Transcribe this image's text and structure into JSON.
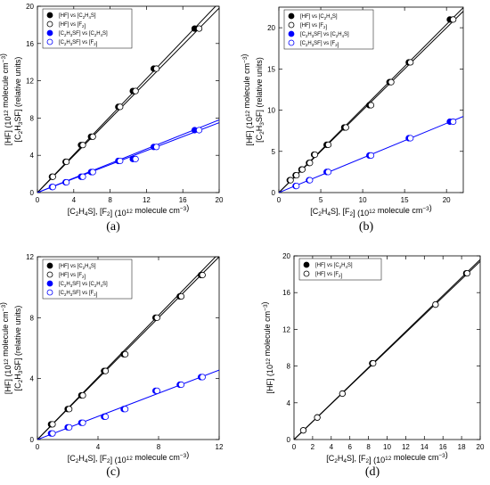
{
  "chart_data": [
    {
      "type": "scatter",
      "panel_label": "(a)",
      "xlabel": "[C2H4S], [F2] (1012 molecule cm−3)",
      "ylabel_lines": [
        "[HF] (1012 molecule cm−3)",
        "[C2H3SF] (relative units)"
      ],
      "xlim": [
        0,
        20
      ],
      "ylim": [
        0,
        20
      ],
      "xticks": [
        0,
        4,
        8,
        12,
        16,
        20
      ],
      "yticks": [
        0,
        4,
        8,
        12,
        16,
        20
      ],
      "legend_position": "top-left",
      "series": [
        {
          "name": "[HF] vs [C2H4S]",
          "color": "#000000",
          "marker": "filled",
          "x": [
            1.6,
            3.1,
            4.8,
            5.9,
            8.9,
            10.5,
            12.8,
            17.3
          ],
          "y": [
            1.7,
            3.3,
            5.1,
            6.0,
            9.2,
            10.9,
            13.3,
            17.6
          ]
        },
        {
          "name": "[HF] vs [F2]",
          "color": "#000000",
          "marker": "open",
          "x": [
            1.7,
            3.2,
            5.0,
            6.1,
            9.1,
            10.8,
            13.1,
            17.8
          ],
          "y": [
            1.7,
            3.3,
            5.1,
            6.0,
            9.2,
            10.9,
            13.3,
            17.6
          ]
        },
        {
          "name": "[C2H3SF] vs [C2H4S]",
          "color": "#0000ff",
          "marker": "filled",
          "x": [
            1.6,
            3.1,
            4.8,
            5.9,
            8.9,
            10.5,
            12.8,
            17.3
          ],
          "y": [
            0.6,
            1.1,
            1.7,
            2.2,
            3.4,
            3.6,
            4.9,
            6.7
          ]
        },
        {
          "name": "[C2H3SF] vs [F2]",
          "color": "#0000ff",
          "marker": "open",
          "x": [
            1.7,
            3.2,
            5.0,
            6.1,
            9.1,
            10.8,
            13.1,
            17.8
          ],
          "y": [
            0.6,
            1.1,
            1.7,
            2.2,
            3.4,
            3.6,
            4.9,
            6.7
          ]
        }
      ],
      "fit_lines": [
        {
          "color": "#000000",
          "slope": 1.02
        },
        {
          "color": "#000000",
          "slope": 0.99
        },
        {
          "color": "#0000ff",
          "slope": 0.39
        },
        {
          "color": "#0000ff",
          "slope": 0.375
        }
      ]
    },
    {
      "type": "scatter",
      "panel_label": "(b)",
      "xlabel": "[C2H4S], [F2] (1012 molecule cm−3)",
      "ylabel_lines": [
        "[HF] (1012 molecule cm−3)",
        "[C2H3SF] (relative units)"
      ],
      "xlim": [
        0,
        22
      ],
      "ylim": [
        0,
        22.5
      ],
      "xticks": [
        0,
        5,
        10,
        15,
        20
      ],
      "yticks": [
        0,
        5,
        10,
        15,
        20
      ],
      "legend_position": "top-left",
      "series": [
        {
          "name": "[HF] vs [C2H4S]",
          "color": "#000000",
          "marker": "filled",
          "x": [
            1.3,
            2.0,
            2.7,
            3.6,
            4.2,
            5.7,
            7.8,
            10.8,
            13.2,
            15.5,
            20.4
          ],
          "y": [
            1.5,
            2.1,
            2.8,
            3.6,
            4.6,
            5.8,
            7.9,
            10.6,
            13.4,
            15.8,
            21.0
          ]
        },
        {
          "name": "[HF] vs [F2]",
          "color": "#000000",
          "marker": "open",
          "x": [
            1.4,
            2.1,
            2.8,
            3.7,
            4.3,
            5.9,
            8.0,
            11.0,
            13.4,
            15.7,
            20.8
          ],
          "y": [
            1.5,
            2.1,
            2.8,
            3.6,
            4.6,
            5.8,
            7.9,
            10.6,
            13.4,
            15.8,
            21.0
          ]
        },
        {
          "name": "[C2H3SF] vs [C2H4S]",
          "color": "#0000ff",
          "marker": "filled",
          "x": [
            2.0,
            3.6,
            5.7,
            10.8,
            15.5,
            20.4
          ],
          "y": [
            0.8,
            1.5,
            2.5,
            4.5,
            6.6,
            8.6
          ]
        },
        {
          "name": "[C2H3SF] vs [F2]",
          "color": "#0000ff",
          "marker": "open",
          "x": [
            2.1,
            3.7,
            5.9,
            11.0,
            15.7,
            20.8
          ],
          "y": [
            0.8,
            1.5,
            2.5,
            4.5,
            6.6,
            8.6
          ]
        }
      ],
      "fit_lines": [
        {
          "color": "#000000",
          "slope": 1.02
        },
        {
          "color": "#000000",
          "slope": 1.0
        },
        {
          "color": "#0000ff",
          "slope": 0.42
        }
      ]
    },
    {
      "type": "scatter",
      "panel_label": "(c)",
      "xlabel": "[C2H4S], [F2] (1012 molecule cm−3)",
      "ylabel_lines": [
        "[HF] (1012 molecule cm−3)",
        "[C2H3SF] (relative units)"
      ],
      "xlim": [
        0,
        12
      ],
      "ylim": [
        0,
        12
      ],
      "xticks": [
        0,
        4,
        8,
        12
      ],
      "yticks": [
        0,
        4,
        8,
        12
      ],
      "legend_position": "top-left",
      "series": [
        {
          "name": "[HF] vs [C2H4S]",
          "color": "#000000",
          "marker": "filled",
          "x": [
            0.9,
            2.0,
            2.9,
            4.4,
            5.7,
            7.8,
            9.4,
            10.8
          ],
          "y": [
            1.0,
            2.0,
            2.9,
            4.5,
            5.6,
            8.0,
            9.4,
            10.8
          ]
        },
        {
          "name": "[HF] vs [F2]",
          "color": "#000000",
          "marker": "open",
          "x": [
            1.0,
            2.1,
            3.0,
            4.5,
            5.8,
            7.9,
            9.5,
            10.9
          ],
          "y": [
            1.0,
            2.0,
            2.9,
            4.5,
            5.6,
            8.0,
            9.4,
            10.8
          ]
        },
        {
          "name": "[C2H3SF] vs [C2H4S]",
          "color": "#0000ff",
          "marker": "filled",
          "x": [
            0.9,
            2.0,
            2.9,
            4.4,
            5.7,
            7.8,
            9.4,
            10.8
          ],
          "y": [
            0.4,
            0.8,
            1.1,
            1.5,
            2.0,
            3.2,
            3.6,
            4.1
          ]
        },
        {
          "name": "[C2H3SF] vs [F2]",
          "color": "#0000ff",
          "marker": "open",
          "x": [
            1.0,
            2.1,
            3.0,
            4.5,
            5.8,
            7.9,
            9.5,
            10.9
          ],
          "y": [
            0.4,
            0.8,
            1.1,
            1.5,
            2.0,
            3.2,
            3.6,
            4.1
          ]
        }
      ],
      "fit_lines": [
        {
          "color": "#000000",
          "slope": 1.02
        },
        {
          "color": "#000000",
          "slope": 1.0
        },
        {
          "color": "#0000ff",
          "slope": 0.38
        }
      ]
    },
    {
      "type": "scatter",
      "panel_label": "(d)",
      "xlabel": "[C2H4S], [F2] (1012 molecule cm−3)",
      "ylabel_lines": [
        "[HF] (1012 molecule cm−3)"
      ],
      "xlim": [
        0,
        20
      ],
      "ylim": [
        0,
        20
      ],
      "xticks": [
        0,
        2,
        4,
        6,
        8,
        10,
        12,
        14,
        16,
        18,
        20
      ],
      "yticks": [
        0,
        4,
        8,
        12,
        16,
        20
      ],
      "legend_position": "top-left",
      "series": [
        {
          "name": "[HF] vs [C2H4S]",
          "color": "#000000",
          "marker": "filled",
          "x": [
            1.0,
            2.5,
            5.2,
            8.4,
            15.2,
            18.5
          ],
          "y": [
            1.0,
            2.4,
            5.0,
            8.3,
            14.7,
            18.1
          ]
        },
        {
          "name": "[HF] vs [F2]",
          "color": "#000000",
          "marker": "open",
          "x": [
            1.0,
            2.5,
            5.2,
            8.5,
            15.2,
            18.6
          ],
          "y": [
            1.0,
            2.4,
            5.0,
            8.3,
            14.7,
            18.1
          ]
        }
      ],
      "fit_lines": [
        {
          "color": "#000000",
          "slope": 0.98
        },
        {
          "color": "#000000",
          "slope": 0.97
        }
      ]
    }
  ]
}
